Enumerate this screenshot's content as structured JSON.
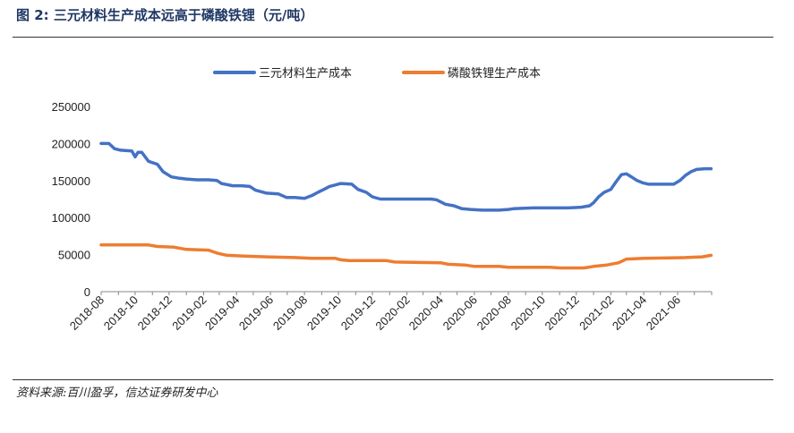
{
  "figure": {
    "title": "图 2:  三元材料生产成本远高于磷酸铁锂（元/吨）",
    "source": "资料来源:百川盈孚，信达证券研发中心"
  },
  "chart_data": {
    "type": "line",
    "title": "",
    "xlabel": "",
    "ylabel": "",
    "ylim": [
      0,
      250000
    ],
    "y_ticks": [
      "0",
      "50000",
      "100000",
      "150000",
      "200000",
      "250000"
    ],
    "x_range": [
      "2018-08",
      "2021-07"
    ],
    "x_ticks": [
      "2018-08",
      "2018-10",
      "2018-12",
      "2019-02",
      "2019-04",
      "2019-06",
      "2019-08",
      "2019-10",
      "2019-12",
      "2020-02",
      "2020-04",
      "2020-06",
      "2020-08",
      "2020-10",
      "2020-12",
      "2021-02",
      "2021-04",
      "2021-06"
    ],
    "legend": "top",
    "grid": false,
    "series": [
      {
        "name": "三元材料生产成本",
        "color": "#4472c4",
        "points": [
          [
            "2018-08-01",
            200000
          ],
          [
            "2018-08-15",
            200000
          ],
          [
            "2018-08-25",
            193000
          ],
          [
            "2018-09-05",
            191000
          ],
          [
            "2018-09-25",
            190000
          ],
          [
            "2018-10-01",
            182000
          ],
          [
            "2018-10-06",
            188000
          ],
          [
            "2018-10-13",
            188000
          ],
          [
            "2018-10-25",
            176000
          ],
          [
            "2018-11-10",
            172000
          ],
          [
            "2018-11-20",
            162000
          ],
          [
            "2018-12-05",
            155000
          ],
          [
            "2018-12-20",
            153000
          ],
          [
            "2019-01-01",
            152000
          ],
          [
            "2019-01-20",
            151000
          ],
          [
            "2019-02-10",
            151000
          ],
          [
            "2019-02-25",
            150000
          ],
          [
            "2019-03-05",
            146000
          ],
          [
            "2019-03-25",
            143000
          ],
          [
            "2019-04-10",
            143000
          ],
          [
            "2019-04-25",
            142000
          ],
          [
            "2019-05-05",
            137000
          ],
          [
            "2019-05-25",
            133000
          ],
          [
            "2019-06-15",
            132000
          ],
          [
            "2019-06-30",
            127000
          ],
          [
            "2019-07-15",
            127000
          ],
          [
            "2019-08-01",
            126000
          ],
          [
            "2019-08-15",
            130000
          ],
          [
            "2019-08-25",
            134000
          ],
          [
            "2019-09-05",
            138000
          ],
          [
            "2019-09-15",
            142000
          ],
          [
            "2019-09-25",
            144000
          ],
          [
            "2019-10-05",
            146000
          ],
          [
            "2019-10-25",
            145000
          ],
          [
            "2019-11-05",
            138000
          ],
          [
            "2019-11-20",
            134000
          ],
          [
            "2019-12-01",
            128000
          ],
          [
            "2019-12-15",
            125000
          ],
          [
            "2020-01-01",
            125000
          ],
          [
            "2020-02-01",
            125000
          ],
          [
            "2020-03-15",
            125000
          ],
          [
            "2020-03-25",
            124000
          ],
          [
            "2020-04-10",
            118000
          ],
          [
            "2020-04-25",
            116000
          ],
          [
            "2020-05-10",
            112000
          ],
          [
            "2020-05-25",
            111000
          ],
          [
            "2020-06-15",
            110000
          ],
          [
            "2020-07-15",
            110000
          ],
          [
            "2020-08-01",
            111000
          ],
          [
            "2020-08-10",
            112000
          ],
          [
            "2020-09-15",
            113000
          ],
          [
            "2020-10-15",
            113000
          ],
          [
            "2020-11-15",
            113000
          ],
          [
            "2020-12-10",
            114000
          ],
          [
            "2020-12-25",
            116000
          ],
          [
            "2021-01-01",
            120000
          ],
          [
            "2021-01-10",
            128000
          ],
          [
            "2021-01-20",
            134000
          ],
          [
            "2021-02-01",
            138000
          ],
          [
            "2021-02-10",
            148000
          ],
          [
            "2021-02-20",
            158000
          ],
          [
            "2021-03-01",
            159000
          ],
          [
            "2021-03-10",
            155000
          ],
          [
            "2021-03-20",
            150000
          ],
          [
            "2021-03-30",
            147000
          ],
          [
            "2021-04-10",
            145000
          ],
          [
            "2021-05-01",
            145000
          ],
          [
            "2021-05-25",
            145000
          ],
          [
            "2021-06-05",
            150000
          ],
          [
            "2021-06-15",
            157000
          ],
          [
            "2021-06-25",
            162000
          ],
          [
            "2021-07-05",
            165000
          ],
          [
            "2021-07-20",
            166000
          ],
          [
            "2021-07-31",
            166000
          ]
        ]
      },
      {
        "name": "磷酸铁锂生产成本",
        "color": "#ed7d31",
        "points": [
          [
            "2018-08-01",
            63000
          ],
          [
            "2018-10-25",
            63000
          ],
          [
            "2018-11-10",
            61000
          ],
          [
            "2018-12-10",
            60000
          ],
          [
            "2019-01-01",
            57000
          ],
          [
            "2019-02-10",
            56000
          ],
          [
            "2019-02-25",
            52000
          ],
          [
            "2019-03-15",
            49000
          ],
          [
            "2019-04-15",
            48000
          ],
          [
            "2019-05-25",
            47000
          ],
          [
            "2019-07-15",
            46000
          ],
          [
            "2019-08-15",
            45000
          ],
          [
            "2019-09-25",
            45000
          ],
          [
            "2019-10-05",
            43000
          ],
          [
            "2019-10-20",
            42000
          ],
          [
            "2019-12-25",
            42000
          ],
          [
            "2020-01-10",
            40000
          ],
          [
            "2020-04-01",
            39000
          ],
          [
            "2020-04-15",
            37000
          ],
          [
            "2020-05-15",
            36000
          ],
          [
            "2020-06-01",
            34000
          ],
          [
            "2020-07-15",
            34000
          ],
          [
            "2020-08-01",
            33000
          ],
          [
            "2020-10-15",
            33000
          ],
          [
            "2020-11-01",
            32000
          ],
          [
            "2020-12-15",
            32000
          ],
          [
            "2021-01-01",
            34000
          ],
          [
            "2021-01-25",
            36000
          ],
          [
            "2021-02-15",
            39000
          ],
          [
            "2021-03-01",
            44000
          ],
          [
            "2021-04-01",
            45000
          ],
          [
            "2021-06-15",
            46000
          ],
          [
            "2021-07-15",
            47000
          ],
          [
            "2021-07-31",
            49000
          ]
        ]
      }
    ]
  }
}
